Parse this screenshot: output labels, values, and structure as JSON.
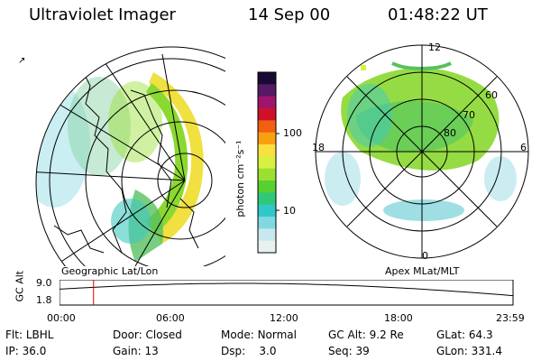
{
  "header": {
    "title": "Ultraviolet Imager",
    "date": "14 Sep 00",
    "time": "01:48:22 UT"
  },
  "colorbar": {
    "label": "photon cm⁻²s⁻¹",
    "ticks": [
      "100",
      "10"
    ],
    "colors": [
      "#1a0a33",
      "#551a66",
      "#a0146e",
      "#d0102a",
      "#f06010",
      "#f8a010",
      "#f8e040",
      "#d8f040",
      "#9ae030",
      "#58d030",
      "#30c878",
      "#30c8c8",
      "#80d8e0",
      "#c8e8f0",
      "#e8f0f0"
    ]
  },
  "left_panel": {
    "projection": "Geographic Lat/Lon"
  },
  "right_panel": {
    "projection": "Apex MLat/MLT",
    "mlt_labels": {
      "top": "12",
      "left": "18",
      "right": "6",
      "bottom": "0"
    },
    "lat_labels": [
      "60",
      "70",
      "80"
    ]
  },
  "timeline": {
    "ylabel": "GC Alt",
    "y_ticks": [
      "9.0",
      "1.8"
    ],
    "x_ticks": [
      "00:00",
      "06:00",
      "12:00",
      "18:00",
      "23:59"
    ],
    "cursor_time": "01:48",
    "cursor_color": "#e00000"
  },
  "status": {
    "filter_label": "Flt:",
    "filter_value": "LBHL",
    "ip_label": "IP:",
    "ip_value": "36.0",
    "door_label": "Door:",
    "door_value": "Closed",
    "gain_label": "Gain:",
    "gain_value": "13",
    "mode_label": "Mode:",
    "mode_value": "Normal",
    "dsp_label": "Dsp:",
    "dsp_value": "3.0",
    "gcalt_label": "GC Alt:",
    "gcalt_value": "9.2 Re",
    "seq_label": "Seq:",
    "seq_value": "39",
    "glat_label": "GLat:",
    "glat_value": "64.3",
    "glon_label": "GLon:",
    "glon_value": "331.4"
  }
}
